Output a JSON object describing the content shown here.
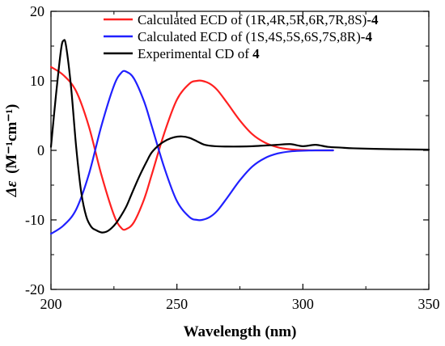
{
  "chart_data": {
    "type": "line",
    "xlabel": "Wavelength (nm)",
    "ylabel_prefix": "Δε",
    "ylabel_units": "(M⁻¹cm⁻¹)",
    "xlim": [
      200,
      350
    ],
    "ylim": [
      -20,
      20
    ],
    "x_ticks": [
      200,
      250,
      300,
      350
    ],
    "y_ticks": [
      -20,
      -10,
      0,
      10,
      20
    ],
    "x_tick_labels": [
      "200",
      "250",
      "300",
      "350"
    ],
    "y_tick_labels": [
      "-20",
      "-10",
      "0",
      "10",
      "20"
    ],
    "legend_position": "top-right",
    "grid": false,
    "series": [
      {
        "name": "Calculated ECD of (1R,4R,5R,6R,7R,8S)-4",
        "legend_text": "Calculated ECD of (1R,4R,5R,6R,7R,8S)",
        "legend_suffix": "-4",
        "color": "#ff2020",
        "x": [
          200,
          205,
          210,
          215,
          220,
          225,
          228,
          230,
          233,
          237,
          240,
          245,
          250,
          255,
          258,
          260,
          263,
          266,
          270,
          275,
          280,
          285,
          290,
          295,
          300,
          305,
          310,
          312
        ],
        "y": [
          12,
          10.8,
          8.5,
          3.5,
          -3.5,
          -9.3,
          -11.2,
          -11.3,
          -10.3,
          -7.0,
          -3.5,
          2.5,
          7.3,
          9.6,
          10.0,
          10.0,
          9.6,
          8.7,
          6.8,
          4.3,
          2.3,
          1.1,
          0.45,
          0.15,
          0.05,
          0.0,
          0.0,
          0.0
        ]
      },
      {
        "name": "Calculated ECD of (1S,4S,5S,6S,7S,8R)-4",
        "legend_text": "Calculated ECD of (1S,4S,5S,6S,7S,8R)",
        "legend_suffix": "-4",
        "color": "#2020ff",
        "x": [
          200,
          205,
          210,
          215,
          220,
          225,
          228,
          230,
          233,
          237,
          240,
          245,
          250,
          255,
          258,
          260,
          263,
          266,
          270,
          275,
          280,
          285,
          290,
          295,
          300,
          305,
          310,
          312
        ],
        "y": [
          -12,
          -10.8,
          -8.5,
          -3.5,
          3.5,
          9.3,
          11.2,
          11.3,
          10.3,
          7.0,
          3.5,
          -2.5,
          -7.3,
          -9.6,
          -10.0,
          -10.0,
          -9.6,
          -8.7,
          -6.8,
          -4.3,
          -2.3,
          -1.1,
          -0.45,
          -0.15,
          -0.05,
          0.0,
          0.0,
          0.0
        ]
      },
      {
        "name": "Experimental CD of 4",
        "legend_text": "Experimental CD of ",
        "legend_suffix": "4",
        "color": "#000000",
        "x": [
          200,
          202,
          204,
          205,
          206,
          208,
          210,
          212,
          214,
          216,
          218,
          220,
          222,
          224,
          226,
          228,
          230,
          232,
          235,
          238,
          240,
          243,
          246,
          249,
          252,
          255,
          258,
          261,
          265,
          270,
          275,
          280,
          285,
          290,
          295,
          300,
          305,
          310,
          315,
          320,
          330,
          340,
          350
        ],
        "y": [
          0.5,
          8.0,
          14.5,
          15.8,
          15.0,
          9.0,
          0.5,
          -6.0,
          -9.5,
          -11.0,
          -11.5,
          -11.8,
          -11.7,
          -11.2,
          -10.4,
          -9.3,
          -8.0,
          -6.3,
          -3.8,
          -1.6,
          -0.3,
          0.8,
          1.5,
          1.9,
          2.0,
          1.8,
          1.3,
          0.8,
          0.6,
          0.55,
          0.55,
          0.6,
          0.7,
          0.8,
          0.9,
          0.6,
          0.8,
          0.5,
          0.4,
          0.3,
          0.2,
          0.15,
          0.1
        ]
      }
    ]
  }
}
